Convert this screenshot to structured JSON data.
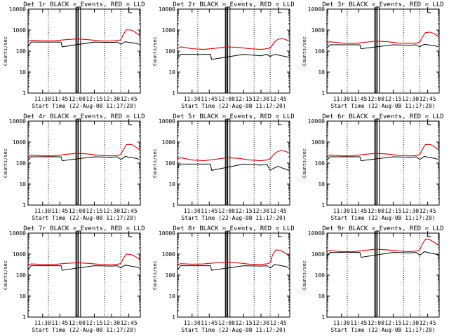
{
  "chart_data": [
    {
      "type": "line",
      "title": "Det 1r BLACK = Events, RED = LLD",
      "xlabel": "Start Time (22-Aug-08 11:17:20)",
      "ylabel": "Counts/sec",
      "y_scale": "log",
      "ylim": [
        1,
        10000
      ],
      "xlim": [
        "11:17:20",
        "12:55:00"
      ],
      "xticks": [
        "11:30",
        "11:45",
        "12:00",
        "12:15",
        "12:30",
        "12:45"
      ],
      "yticks": [
        "1",
        "10",
        "100",
        "1000",
        "10000"
      ],
      "series": [
        {
          "name": "BLACK",
          "color": "#000000",
          "x": [
            "11:17",
            "11:20",
            "11:35",
            "11:40",
            "11:46",
            "11:47",
            "12:15",
            "12:30",
            "12:35",
            "12:38",
            "12:39",
            "12:42",
            "12:45",
            "12:48",
            "12:52",
            "12:54"
          ],
          "values": [
            160,
            270,
            270,
            270,
            270,
            160,
            270,
            260,
            270,
            210,
            230,
            280,
            260,
            250,
            230,
            210
          ]
        },
        {
          "name": "RED",
          "color": "#e00000",
          "x": [
            "11:17",
            "11:20",
            "11:30",
            "11:40",
            "11:50",
            "12:00",
            "12:10",
            "12:20",
            "12:30",
            "12:35",
            "12:38",
            "12:40",
            "12:43",
            "12:47",
            "12:50",
            "12:53",
            "12:54"
          ],
          "values": [
            280,
            330,
            310,
            310,
            350,
            380,
            350,
            310,
            300,
            320,
            340,
            600,
            1050,
            1000,
            830,
            640,
            560
          ]
        }
      ]
    },
    {
      "type": "line",
      "title": "Det 2r BLACK = Events, RED = LLD",
      "xlabel": "Start Time (22-Aug-08 11:17:20)",
      "ylabel": "Counts/sec",
      "y_scale": "log",
      "ylim": [
        1,
        10000
      ],
      "xlim": [
        "11:17:20",
        "12:55:00"
      ],
      "xticks": [
        "11:30",
        "11:45",
        "12:00",
        "12:15",
        "12:30",
        "12:45"
      ],
      "yticks": [
        "1",
        "10",
        "100",
        "1000",
        "10000"
      ],
      "series": [
        {
          "name": "BLACK",
          "color": "#000000",
          "x": [
            "11:17",
            "11:20",
            "11:35",
            "11:40",
            "11:46",
            "11:47",
            "12:15",
            "12:30",
            "12:35",
            "12:38",
            "12:39",
            "12:42",
            "12:45",
            "12:48",
            "12:52",
            "12:54"
          ],
          "values": [
            40,
            70,
            70,
            70,
            70,
            40,
            70,
            60,
            70,
            55,
            60,
            70,
            65,
            60,
            55,
            50
          ]
        },
        {
          "name": "RED",
          "color": "#e00000",
          "x": [
            "11:17",
            "11:20",
            "11:30",
            "11:40",
            "11:50",
            "12:00",
            "12:10",
            "12:20",
            "12:30",
            "12:35",
            "12:38",
            "12:40",
            "12:43",
            "12:47",
            "12:50",
            "12:53",
            "12:54"
          ],
          "values": [
            130,
            160,
            130,
            120,
            135,
            160,
            150,
            130,
            120,
            130,
            140,
            200,
            320,
            400,
            380,
            320,
            300
          ]
        }
      ]
    },
    {
      "type": "line",
      "title": "Det 3r BLACK = Events, RED = LLD",
      "xlabel": "Start Time (22-Aug-08 11:17:20)",
      "ylabel": "Counts/sec",
      "y_scale": "log",
      "ylim": [
        1,
        10000
      ],
      "xlim": [
        "11:17:20",
        "12:55:00"
      ],
      "xticks": [
        "11:30",
        "11:45",
        "12:00",
        "12:15",
        "12:30",
        "12:45"
      ],
      "yticks": [
        "1",
        "10",
        "100",
        "1000",
        "10000"
      ],
      "series": [
        {
          "name": "BLACK",
          "color": "#000000",
          "x": [
            "11:17",
            "11:20",
            "11:35",
            "11:40",
            "11:46",
            "11:47",
            "12:15",
            "12:30",
            "12:35",
            "12:38",
            "12:39",
            "12:42",
            "12:45",
            "12:48",
            "12:52",
            "12:54"
          ],
          "values": [
            130,
            200,
            200,
            200,
            200,
            130,
            200,
            190,
            200,
            160,
            170,
            210,
            200,
            190,
            175,
            160
          ]
        },
        {
          "name": "RED",
          "color": "#e00000",
          "x": [
            "11:17",
            "11:20",
            "11:30",
            "11:40",
            "11:50",
            "12:00",
            "12:10",
            "12:20",
            "12:30",
            "12:35",
            "12:38",
            "12:40",
            "12:43",
            "12:47",
            "12:50",
            "12:53",
            "12:54"
          ],
          "values": [
            250,
            280,
            240,
            230,
            260,
            300,
            280,
            240,
            230,
            240,
            260,
            430,
            750,
            800,
            700,
            560,
            480
          ]
        }
      ]
    },
    {
      "type": "line",
      "title": "Det 4r BLACK = Events, RED = LLD",
      "xlabel": "Start Time (22-Aug-08 11:17:20)",
      "ylabel": "Counts/sec",
      "y_scale": "log",
      "ylim": [
        1,
        10000
      ],
      "xlim": [
        "11:17:20",
        "12:55:00"
      ],
      "xticks": [
        "11:30",
        "11:45",
        "12:00",
        "12:15",
        "12:30",
        "12:45"
      ],
      "yticks": [
        "1",
        "10",
        "100",
        "1000",
        "10000"
      ],
      "series": [
        {
          "name": "BLACK",
          "color": "#000000",
          "x": [
            "11:17",
            "11:20",
            "11:35",
            "11:40",
            "11:46",
            "11:47",
            "12:15",
            "12:30",
            "12:35",
            "12:38",
            "12:39",
            "12:42",
            "12:45",
            "12:48",
            "12:52",
            "12:54"
          ],
          "values": [
            130,
            200,
            200,
            200,
            200,
            130,
            200,
            190,
            200,
            150,
            160,
            210,
            190,
            180,
            165,
            150
          ]
        },
        {
          "name": "RED",
          "color": "#e00000",
          "x": [
            "11:17",
            "11:20",
            "11:30",
            "11:40",
            "11:50",
            "12:00",
            "12:10",
            "12:20",
            "12:30",
            "12:35",
            "12:38",
            "12:40",
            "12:43",
            "12:47",
            "12:50",
            "12:53",
            "12:54"
          ],
          "values": [
            200,
            240,
            220,
            220,
            260,
            290,
            270,
            230,
            220,
            230,
            250,
            420,
            760,
            780,
            640,
            500,
            440
          ]
        }
      ]
    },
    {
      "type": "line",
      "title": "Det 5r BLACK = Events, RED = LLD",
      "xlabel": "Start Time (22-Aug-08 11:17:20)",
      "ylabel": "Counts/sec",
      "y_scale": "log",
      "ylim": [
        1,
        10000
      ],
      "xlim": [
        "11:17:20",
        "12:55:00"
      ],
      "xticks": [
        "11:30",
        "11:45",
        "12:00",
        "12:15",
        "12:30",
        "12:45"
      ],
      "yticks": [
        "1",
        "10",
        "100",
        "1000",
        "10000"
      ],
      "series": [
        {
          "name": "BLACK",
          "color": "#000000",
          "x": [
            "11:17",
            "11:20",
            "11:35",
            "11:40",
            "11:46",
            "11:47",
            "12:15",
            "12:30",
            "12:35",
            "12:38",
            "12:39",
            "12:42",
            "12:45",
            "12:48",
            "12:52",
            "12:54"
          ],
          "values": [
            60,
            90,
            90,
            90,
            90,
            45,
            90,
            80,
            90,
            45,
            50,
            60,
            70,
            60,
            50,
            45
          ]
        },
        {
          "name": "RED",
          "color": "#e00000",
          "x": [
            "11:17",
            "11:20",
            "11:30",
            "11:40",
            "11:50",
            "12:00",
            "12:10",
            "12:20",
            "12:30",
            "12:35",
            "12:38",
            "12:40",
            "12:43",
            "12:47",
            "12:50",
            "12:53",
            "12:54"
          ],
          "values": [
            150,
            180,
            140,
            130,
            150,
            180,
            170,
            140,
            130,
            140,
            160,
            220,
            320,
            400,
            380,
            330,
            300
          ]
        }
      ]
    },
    {
      "type": "line",
      "title": "Det 6r BLACK = Events, RED = LLD",
      "xlabel": "Start Time (22-Aug-08 11:17:20)",
      "ylabel": "Counts/sec",
      "y_scale": "log",
      "ylim": [
        1,
        10000
      ],
      "xlim": [
        "11:17:20",
        "12:55:00"
      ],
      "xticks": [
        "11:30",
        "11:45",
        "12:00",
        "12:15",
        "12:30",
        "12:45"
      ],
      "yticks": [
        "1",
        "10",
        "100",
        "1000",
        "10000"
      ],
      "series": [
        {
          "name": "BLACK",
          "color": "#000000",
          "x": [
            "11:17",
            "11:20",
            "11:35",
            "11:40",
            "11:46",
            "11:47",
            "12:15",
            "12:30",
            "12:35",
            "12:38",
            "12:39",
            "12:42",
            "12:45",
            "12:48",
            "12:52",
            "12:54"
          ],
          "values": [
            130,
            200,
            200,
            200,
            200,
            130,
            200,
            190,
            200,
            150,
            160,
            210,
            190,
            180,
            165,
            150
          ]
        },
        {
          "name": "RED",
          "color": "#e00000",
          "x": [
            "11:17",
            "11:20",
            "11:30",
            "11:40",
            "11:50",
            "12:00",
            "12:10",
            "12:20",
            "12:30",
            "12:35",
            "12:38",
            "12:40",
            "12:43",
            "12:47",
            "12:50",
            "12:53",
            "12:54"
          ],
          "values": [
            200,
            240,
            220,
            220,
            260,
            290,
            270,
            230,
            220,
            230,
            250,
            420,
            760,
            780,
            640,
            500,
            440
          ]
        }
      ]
    },
    {
      "type": "line",
      "title": "Det 7r BLACK = Events, RED = LLD",
      "xlabel": "Start Time (22-Aug-08 11:17:20)",
      "ylabel": "Counts/sec",
      "y_scale": "log",
      "ylim": [
        1,
        10000
      ],
      "xlim": [
        "11:17:20",
        "12:55:00"
      ],
      "xticks": [
        "11:30",
        "11:45",
        "12:00",
        "12:15",
        "12:30",
        "12:45"
      ],
      "yticks": [
        "1",
        "10",
        "100",
        "1000",
        "10000"
      ],
      "series": [
        {
          "name": "BLACK",
          "color": "#000000",
          "x": [
            "11:17",
            "11:20",
            "11:35",
            "11:40",
            "11:46",
            "11:47",
            "12:15",
            "12:30",
            "12:35",
            "12:38",
            "12:39",
            "12:42",
            "12:45",
            "12:48",
            "12:52",
            "12:54"
          ],
          "values": [
            170,
            280,
            280,
            280,
            280,
            170,
            280,
            270,
            280,
            220,
            240,
            300,
            280,
            260,
            240,
            220
          ]
        },
        {
          "name": "RED",
          "color": "#e00000",
          "x": [
            "11:17",
            "11:20",
            "11:30",
            "11:40",
            "11:50",
            "12:00",
            "12:10",
            "12:20",
            "12:30",
            "12:35",
            "12:38",
            "12:40",
            "12:43",
            "12:47",
            "12:50",
            "12:53",
            "12:54"
          ],
          "values": [
            300,
            340,
            320,
            320,
            360,
            390,
            360,
            320,
            310,
            330,
            350,
            600,
            1000,
            950,
            800,
            640,
            560
          ]
        }
      ]
    },
    {
      "type": "line",
      "title": "Det 8r BLACK = Events, RED = LLD",
      "xlabel": "Start Time (22-Aug-08 11:17:20)",
      "ylabel": "Counts/sec",
      "y_scale": "log",
      "ylim": [
        1,
        10000
      ],
      "xlim": [
        "11:17:20",
        "12:55:00"
      ],
      "xticks": [
        "11:30",
        "11:45",
        "12:00",
        "12:15",
        "12:30",
        "12:45"
      ],
      "yticks": [
        "1",
        "10",
        "100",
        "1000",
        "10000"
      ],
      "series": [
        {
          "name": "BLACK",
          "color": "#000000",
          "x": [
            "11:17",
            "11:20",
            "11:35",
            "11:40",
            "11:46",
            "11:47",
            "12:15",
            "12:30",
            "12:35",
            "12:38",
            "12:39",
            "12:42",
            "12:45",
            "12:48",
            "12:52",
            "12:54"
          ],
          "values": [
            170,
            280,
            280,
            280,
            280,
            170,
            280,
            270,
            280,
            220,
            240,
            320,
            300,
            280,
            250,
            230
          ]
        },
        {
          "name": "RED",
          "color": "#e00000",
          "x": [
            "11:17",
            "11:20",
            "11:30",
            "11:40",
            "11:50",
            "12:00",
            "12:10",
            "12:20",
            "12:30",
            "12:35",
            "12:38",
            "12:40",
            "12:43",
            "12:47",
            "12:50",
            "12:53",
            "12:54"
          ],
          "values": [
            310,
            350,
            330,
            340,
            380,
            420,
            380,
            330,
            320,
            340,
            380,
            900,
            1600,
            1500,
            1200,
            950,
            800
          ]
        }
      ]
    },
    {
      "type": "line",
      "title": "Det 9r BLACK = Events, RED = LLD",
      "xlabel": "Start Time (22-Aug-08 11:17:20)",
      "ylabel": "Counts/sec",
      "y_scale": "log",
      "ylim": [
        1,
        10000
      ],
      "xlim": [
        "11:17:20",
        "12:55:00"
      ],
      "xticks": [
        "11:30",
        "11:45",
        "12:00",
        "12:15",
        "12:30",
        "12:45"
      ],
      "yticks": [
        "1",
        "10",
        "100",
        "1000",
        "10000"
      ],
      "series": [
        {
          "name": "BLACK",
          "color": "#000000",
          "x": [
            "11:17",
            "11:20",
            "11:35",
            "11:40",
            "11:46",
            "11:47",
            "12:15",
            "12:30",
            "12:35",
            "12:38",
            "12:39",
            "12:42",
            "12:45",
            "12:48",
            "12:52",
            "12:54"
          ],
          "values": [
            700,
            1200,
            1200,
            1200,
            1200,
            700,
            1200,
            1150,
            1200,
            900,
            950,
            1300,
            1200,
            1100,
            1000,
            900
          ]
        },
        {
          "name": "RED",
          "color": "#e00000",
          "x": [
            "11:17",
            "11:20",
            "11:30",
            "11:40",
            "11:50",
            "12:00",
            "12:10",
            "12:20",
            "12:30",
            "12:35",
            "12:38",
            "12:40",
            "12:43",
            "12:47",
            "12:50",
            "12:53",
            "12:54"
          ],
          "values": [
            1300,
            1500,
            1300,
            1300,
            1500,
            1700,
            1600,
            1400,
            1300,
            1400,
            1500,
            2800,
            5000,
            4800,
            3800,
            3000,
            2600
          ]
        }
      ]
    }
  ],
  "chart_meta": {
    "t0": "11:17:20",
    "dotted_lines": [
      "11:35",
      "12:24",
      "12:38"
    ],
    "solid_lines": [
      "11:59",
      "12:01"
    ],
    "square_box": {
      "x0": "12:00",
      "x1": "12:03"
    },
    "flag_marker": {
      "x0": "12:45",
      "x1": "12:48"
    }
  }
}
